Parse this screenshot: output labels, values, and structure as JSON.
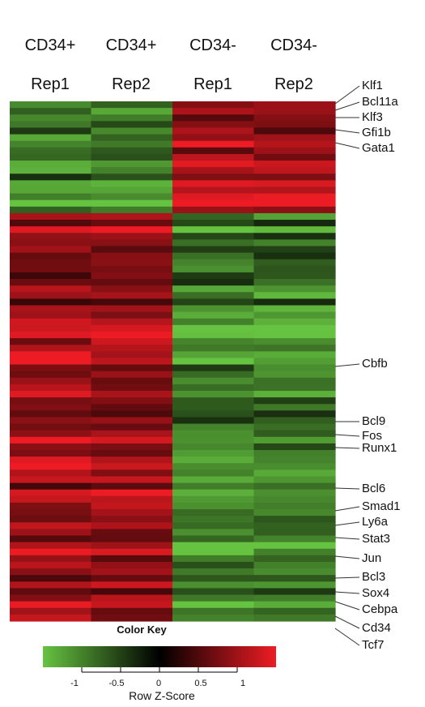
{
  "chart_data": {
    "type": "heatmap",
    "columns": [
      {
        "line1": "CD34+",
        "line2": "Rep1"
      },
      {
        "line1": "CD34+",
        "line2": "Rep2"
      },
      {
        "line1": "CD34-",
        "line2": "Rep1"
      },
      {
        "line1": "CD34-",
        "line2": "Rep2"
      }
    ],
    "gene_labels": [
      "Klf1",
      "Bcl11a",
      "Klf3",
      "Gfi1b",
      "Gata1",
      "Cbfb",
      "Bcl9",
      "Fos",
      "Runx1",
      "Bcl6",
      "Smad1",
      "Ly6a",
      "Stat3",
      "Jun",
      "Bcl3",
      "Sox4",
      "Cebpa",
      "Cd34",
      "Tcf7"
    ],
    "row_blocks": [
      {
        "rows": 17,
        "pattern": [
          -1,
          -1,
          1,
          1
        ]
      },
      {
        "rows": 62,
        "pattern": [
          1,
          1,
          -1,
          -1
        ]
      }
    ],
    "color_key": {
      "title": "Color Key",
      "label": "Row Z-Score",
      "ticks": [
        "-1",
        "-0.5",
        "0",
        "0.5",
        "1"
      ],
      "tick_values": [
        -1,
        -0.5,
        0,
        0.5,
        1
      ],
      "range": [
        -1.5,
        1.5
      ],
      "colors": {
        "low": "#66c341",
        "mid": "#000000",
        "high": "#ed1c24"
      }
    }
  }
}
